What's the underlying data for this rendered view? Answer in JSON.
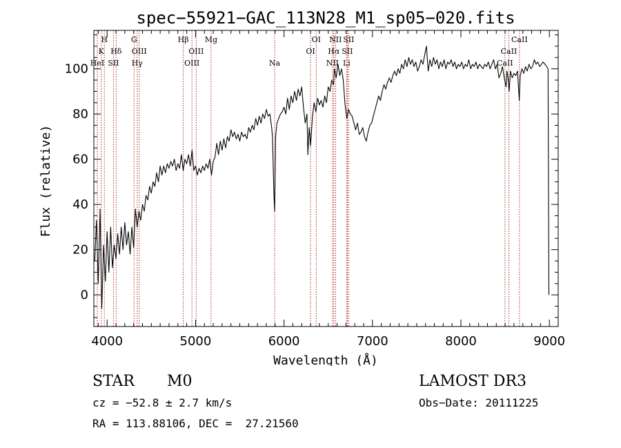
{
  "chart_data": {
    "type": "line",
    "title": "spec−55921−GAC_113N28_M1_sp05−020.fits",
    "xlabel": "Wavelength (Å)",
    "ylabel": "Flux (relative)",
    "xlim": [
      3850,
      9100
    ],
    "ylim": [
      -14,
      117
    ],
    "xticks": [
      4000,
      5000,
      6000,
      7000,
      8000,
      9000
    ],
    "yticks": [
      0,
      20,
      40,
      60,
      80,
      100
    ],
    "line_color": "#000000",
    "marker_color": "#b22222",
    "series": [
      {
        "name": "flux",
        "points": [
          [
            3860,
            15
          ],
          [
            3880,
            33
          ],
          [
            3900,
            5
          ],
          [
            3920,
            38
          ],
          [
            3940,
            -6
          ],
          [
            3960,
            22
          ],
          [
            3980,
            6
          ],
          [
            4000,
            28
          ],
          [
            4020,
            10
          ],
          [
            4040,
            30
          ],
          [
            4060,
            12
          ],
          [
            4080,
            22
          ],
          [
            4100,
            16
          ],
          [
            4120,
            27
          ],
          [
            4140,
            18
          ],
          [
            4160,
            30
          ],
          [
            4180,
            20
          ],
          [
            4200,
            32
          ],
          [
            4220,
            22
          ],
          [
            4240,
            28
          ],
          [
            4260,
            18
          ],
          [
            4280,
            30
          ],
          [
            4300,
            21
          ],
          [
            4320,
            38
          ],
          [
            4340,
            30
          ],
          [
            4360,
            37
          ],
          [
            4380,
            33
          ],
          [
            4400,
            40
          ],
          [
            4420,
            37
          ],
          [
            4440,
            44
          ],
          [
            4460,
            42
          ],
          [
            4480,
            48
          ],
          [
            4500,
            45
          ],
          [
            4520,
            50
          ],
          [
            4540,
            48
          ],
          [
            4560,
            54
          ],
          [
            4580,
            50
          ],
          [
            4600,
            57
          ],
          [
            4620,
            53
          ],
          [
            4640,
            57
          ],
          [
            4660,
            54
          ],
          [
            4680,
            58
          ],
          [
            4700,
            56
          ],
          [
            4720,
            59
          ],
          [
            4740,
            57
          ],
          [
            4760,
            60
          ],
          [
            4780,
            55
          ],
          [
            4800,
            58
          ],
          [
            4820,
            56
          ],
          [
            4840,
            62
          ],
          [
            4860,
            55
          ],
          [
            4880,
            60
          ],
          [
            4900,
            58
          ],
          [
            4920,
            62
          ],
          [
            4940,
            57
          ],
          [
            4960,
            64
          ],
          [
            4980,
            55
          ],
          [
            5000,
            57
          ],
          [
            5020,
            53
          ],
          [
            5040,
            56
          ],
          [
            5060,
            54
          ],
          [
            5080,
            57
          ],
          [
            5100,
            55
          ],
          [
            5120,
            58
          ],
          [
            5140,
            56
          ],
          [
            5160,
            60
          ],
          [
            5180,
            53
          ],
          [
            5200,
            59
          ],
          [
            5220,
            61
          ],
          [
            5240,
            67
          ],
          [
            5260,
            62
          ],
          [
            5280,
            68
          ],
          [
            5300,
            64
          ],
          [
            5320,
            69
          ],
          [
            5340,
            65
          ],
          [
            5360,
            70
          ],
          [
            5380,
            68
          ],
          [
            5400,
            73
          ],
          [
            5420,
            70
          ],
          [
            5440,
            72
          ],
          [
            5460,
            69
          ],
          [
            5480,
            71
          ],
          [
            5500,
            68
          ],
          [
            5520,
            72
          ],
          [
            5540,
            70
          ],
          [
            5560,
            71
          ],
          [
            5580,
            69
          ],
          [
            5600,
            74
          ],
          [
            5620,
            72
          ],
          [
            5640,
            75
          ],
          [
            5660,
            73
          ],
          [
            5680,
            78
          ],
          [
            5700,
            75
          ],
          [
            5720,
            79
          ],
          [
            5740,
            76
          ],
          [
            5760,
            80
          ],
          [
            5780,
            78
          ],
          [
            5800,
            82
          ],
          [
            5820,
            79
          ],
          [
            5840,
            80
          ],
          [
            5860,
            74
          ],
          [
            5870,
            70
          ],
          [
            5885,
            45
          ],
          [
            5895,
            37
          ],
          [
            5905,
            70
          ],
          [
            5920,
            76
          ],
          [
            5940,
            78
          ],
          [
            5960,
            80
          ],
          [
            5980,
            81
          ],
          [
            6000,
            83
          ],
          [
            6020,
            80
          ],
          [
            6040,
            87
          ],
          [
            6060,
            82
          ],
          [
            6080,
            88
          ],
          [
            6100,
            85
          ],
          [
            6120,
            90
          ],
          [
            6140,
            86
          ],
          [
            6160,
            91
          ],
          [
            6180,
            88
          ],
          [
            6200,
            92
          ],
          [
            6220,
            83
          ],
          [
            6240,
            76
          ],
          [
            6260,
            80
          ],
          [
            6270,
            62
          ],
          [
            6285,
            74
          ],
          [
            6300,
            66
          ],
          [
            6320,
            78
          ],
          [
            6340,
            85
          ],
          [
            6360,
            81
          ],
          [
            6380,
            87
          ],
          [
            6400,
            84
          ],
          [
            6420,
            86
          ],
          [
            6440,
            83
          ],
          [
            6460,
            88
          ],
          [
            6480,
            85
          ],
          [
            6500,
            92
          ],
          [
            6520,
            90
          ],
          [
            6540,
            95
          ],
          [
            6560,
            93
          ],
          [
            6570,
            100
          ],
          [
            6590,
            96
          ],
          [
            6610,
            102
          ],
          [
            6630,
            97
          ],
          [
            6650,
            100
          ],
          [
            6670,
            95
          ],
          [
            6690,
            84
          ],
          [
            6710,
            78
          ],
          [
            6730,
            82
          ],
          [
            6750,
            80
          ],
          [
            6770,
            79
          ],
          [
            6790,
            76
          ],
          [
            6810,
            73
          ],
          [
            6830,
            76
          ],
          [
            6850,
            71
          ],
          [
            6870,
            72
          ],
          [
            6890,
            74
          ],
          [
            6910,
            70
          ],
          [
            6930,
            68
          ],
          [
            6950,
            72
          ],
          [
            6970,
            75
          ],
          [
            6990,
            76
          ],
          [
            7010,
            79
          ],
          [
            7030,
            82
          ],
          [
            7050,
            85
          ],
          [
            7070,
            88
          ],
          [
            7090,
            86
          ],
          [
            7110,
            90
          ],
          [
            7130,
            93
          ],
          [
            7150,
            91
          ],
          [
            7170,
            94
          ],
          [
            7190,
            96
          ],
          [
            7210,
            94
          ],
          [
            7230,
            97
          ],
          [
            7250,
            99
          ],
          [
            7270,
            97
          ],
          [
            7290,
            100
          ],
          [
            7310,
            98
          ],
          [
            7330,
            102
          ],
          [
            7350,
            100
          ],
          [
            7370,
            104
          ],
          [
            7390,
            101
          ],
          [
            7410,
            105
          ],
          [
            7430,
            102
          ],
          [
            7450,
            104
          ],
          [
            7470,
            101
          ],
          [
            7490,
            103
          ],
          [
            7510,
            99
          ],
          [
            7530,
            101
          ],
          [
            7550,
            104
          ],
          [
            7570,
            102
          ],
          [
            7590,
            106
          ],
          [
            7610,
            110
          ],
          [
            7630,
            99
          ],
          [
            7650,
            104
          ],
          [
            7670,
            101
          ],
          [
            7690,
            105
          ],
          [
            7710,
            102
          ],
          [
            7730,
            104
          ],
          [
            7750,
            100
          ],
          [
            7770,
            103
          ],
          [
            7790,
            101
          ],
          [
            7810,
            104
          ],
          [
            7830,
            100
          ],
          [
            7850,
            103
          ],
          [
            7870,
            102
          ],
          [
            7890,
            104
          ],
          [
            7910,
            101
          ],
          [
            7930,
            103
          ],
          [
            7950,
            100
          ],
          [
            7970,
            102
          ],
          [
            7990,
            101
          ],
          [
            8010,
            103
          ],
          [
            8030,
            100
          ],
          [
            8050,
            102
          ],
          [
            8070,
            101
          ],
          [
            8090,
            104
          ],
          [
            8110,
            100
          ],
          [
            8130,
            102
          ],
          [
            8150,
            101
          ],
          [
            8170,
            103
          ],
          [
            8190,
            100
          ],
          [
            8210,
            102
          ],
          [
            8230,
            101
          ],
          [
            8250,
            100
          ],
          [
            8270,
            102
          ],
          [
            8290,
            101
          ],
          [
            8310,
            103
          ],
          [
            8330,
            100
          ],
          [
            8350,
            102
          ],
          [
            8370,
            104
          ],
          [
            8390,
            100
          ],
          [
            8410,
            102
          ],
          [
            8430,
            96
          ],
          [
            8450,
            98
          ],
          [
            8470,
            101
          ],
          [
            8490,
            96
          ],
          [
            8510,
            92
          ],
          [
            8520,
            99
          ],
          [
            8530,
            97
          ],
          [
            8545,
            90
          ],
          [
            8560,
            99
          ],
          [
            8580,
            96
          ],
          [
            8600,
            98
          ],
          [
            8620,
            97
          ],
          [
            8640,
            99
          ],
          [
            8660,
            86
          ],
          [
            8670,
            97
          ],
          [
            8690,
            100
          ],
          [
            8710,
            98
          ],
          [
            8730,
            101
          ],
          [
            8750,
            99
          ],
          [
            8770,
            102
          ],
          [
            8790,
            100
          ],
          [
            8810,
            101
          ],
          [
            8830,
            104
          ],
          [
            8850,
            102
          ],
          [
            8870,
            103
          ],
          [
            8890,
            101
          ],
          [
            8910,
            102
          ],
          [
            8930,
            103
          ],
          [
            8950,
            102
          ],
          [
            8970,
            101
          ],
          [
            8985,
            100
          ],
          [
            8995,
            0
          ]
        ]
      }
    ],
    "line_markers": [
      {
        "wl": 3934,
        "label": "K",
        "row": 2
      },
      {
        "wl": 3969,
        "label": "H",
        "row": 1
      },
      {
        "wl": 3889,
        "label": "HeI",
        "row": 3
      },
      {
        "wl": 4072,
        "label": "SII",
        "row": 3
      },
      {
        "wl": 4102,
        "label": "Hδ",
        "row": 2
      },
      {
        "wl": 4305,
        "label": "G",
        "row": 1
      },
      {
        "wl": 4340,
        "label": "Hγ",
        "row": 3
      },
      {
        "wl": 4363,
        "label": "OIII",
        "row": 2
      },
      {
        "wl": 4861,
        "label": "Hβ",
        "row": 1
      },
      {
        "wl": 4959,
        "label": "OIII",
        "row": 3
      },
      {
        "wl": 5007,
        "label": "OIII",
        "row": 2
      },
      {
        "wl": 5175,
        "label": "Mg",
        "row": 1
      },
      {
        "wl": 5894,
        "label": "Na",
        "row": 3
      },
      {
        "wl": 6300,
        "label": "OI",
        "row": 2
      },
      {
        "wl": 6364,
        "label": "OI",
        "row": 1
      },
      {
        "wl": 6548,
        "label": "NII",
        "row": 3
      },
      {
        "wl": 6563,
        "label": "Hα",
        "row": 2
      },
      {
        "wl": 6583,
        "label": "NII",
        "row": 1
      },
      {
        "wl": 6708,
        "label": "Li",
        "row": 3
      },
      {
        "wl": 6716,
        "label": "SII",
        "row": 2
      },
      {
        "wl": 6731,
        "label": "SII",
        "row": 1
      },
      {
        "wl": 8498,
        "label": "CaII",
        "row": 3
      },
      {
        "wl": 8542,
        "label": "CaII",
        "row": 2
      },
      {
        "wl": 8662,
        "label": "CaII",
        "row": 1
      }
    ]
  },
  "info": {
    "class_type": "STAR",
    "subclass": "M0",
    "survey": "LAMOST DR3",
    "redshift_line": "cz = −52.8 ± 2.7 km/s",
    "obs_date_line": "Obs−Date: 20111225",
    "coords_line": "RA = 113.88106, DEC =  27.21560"
  }
}
